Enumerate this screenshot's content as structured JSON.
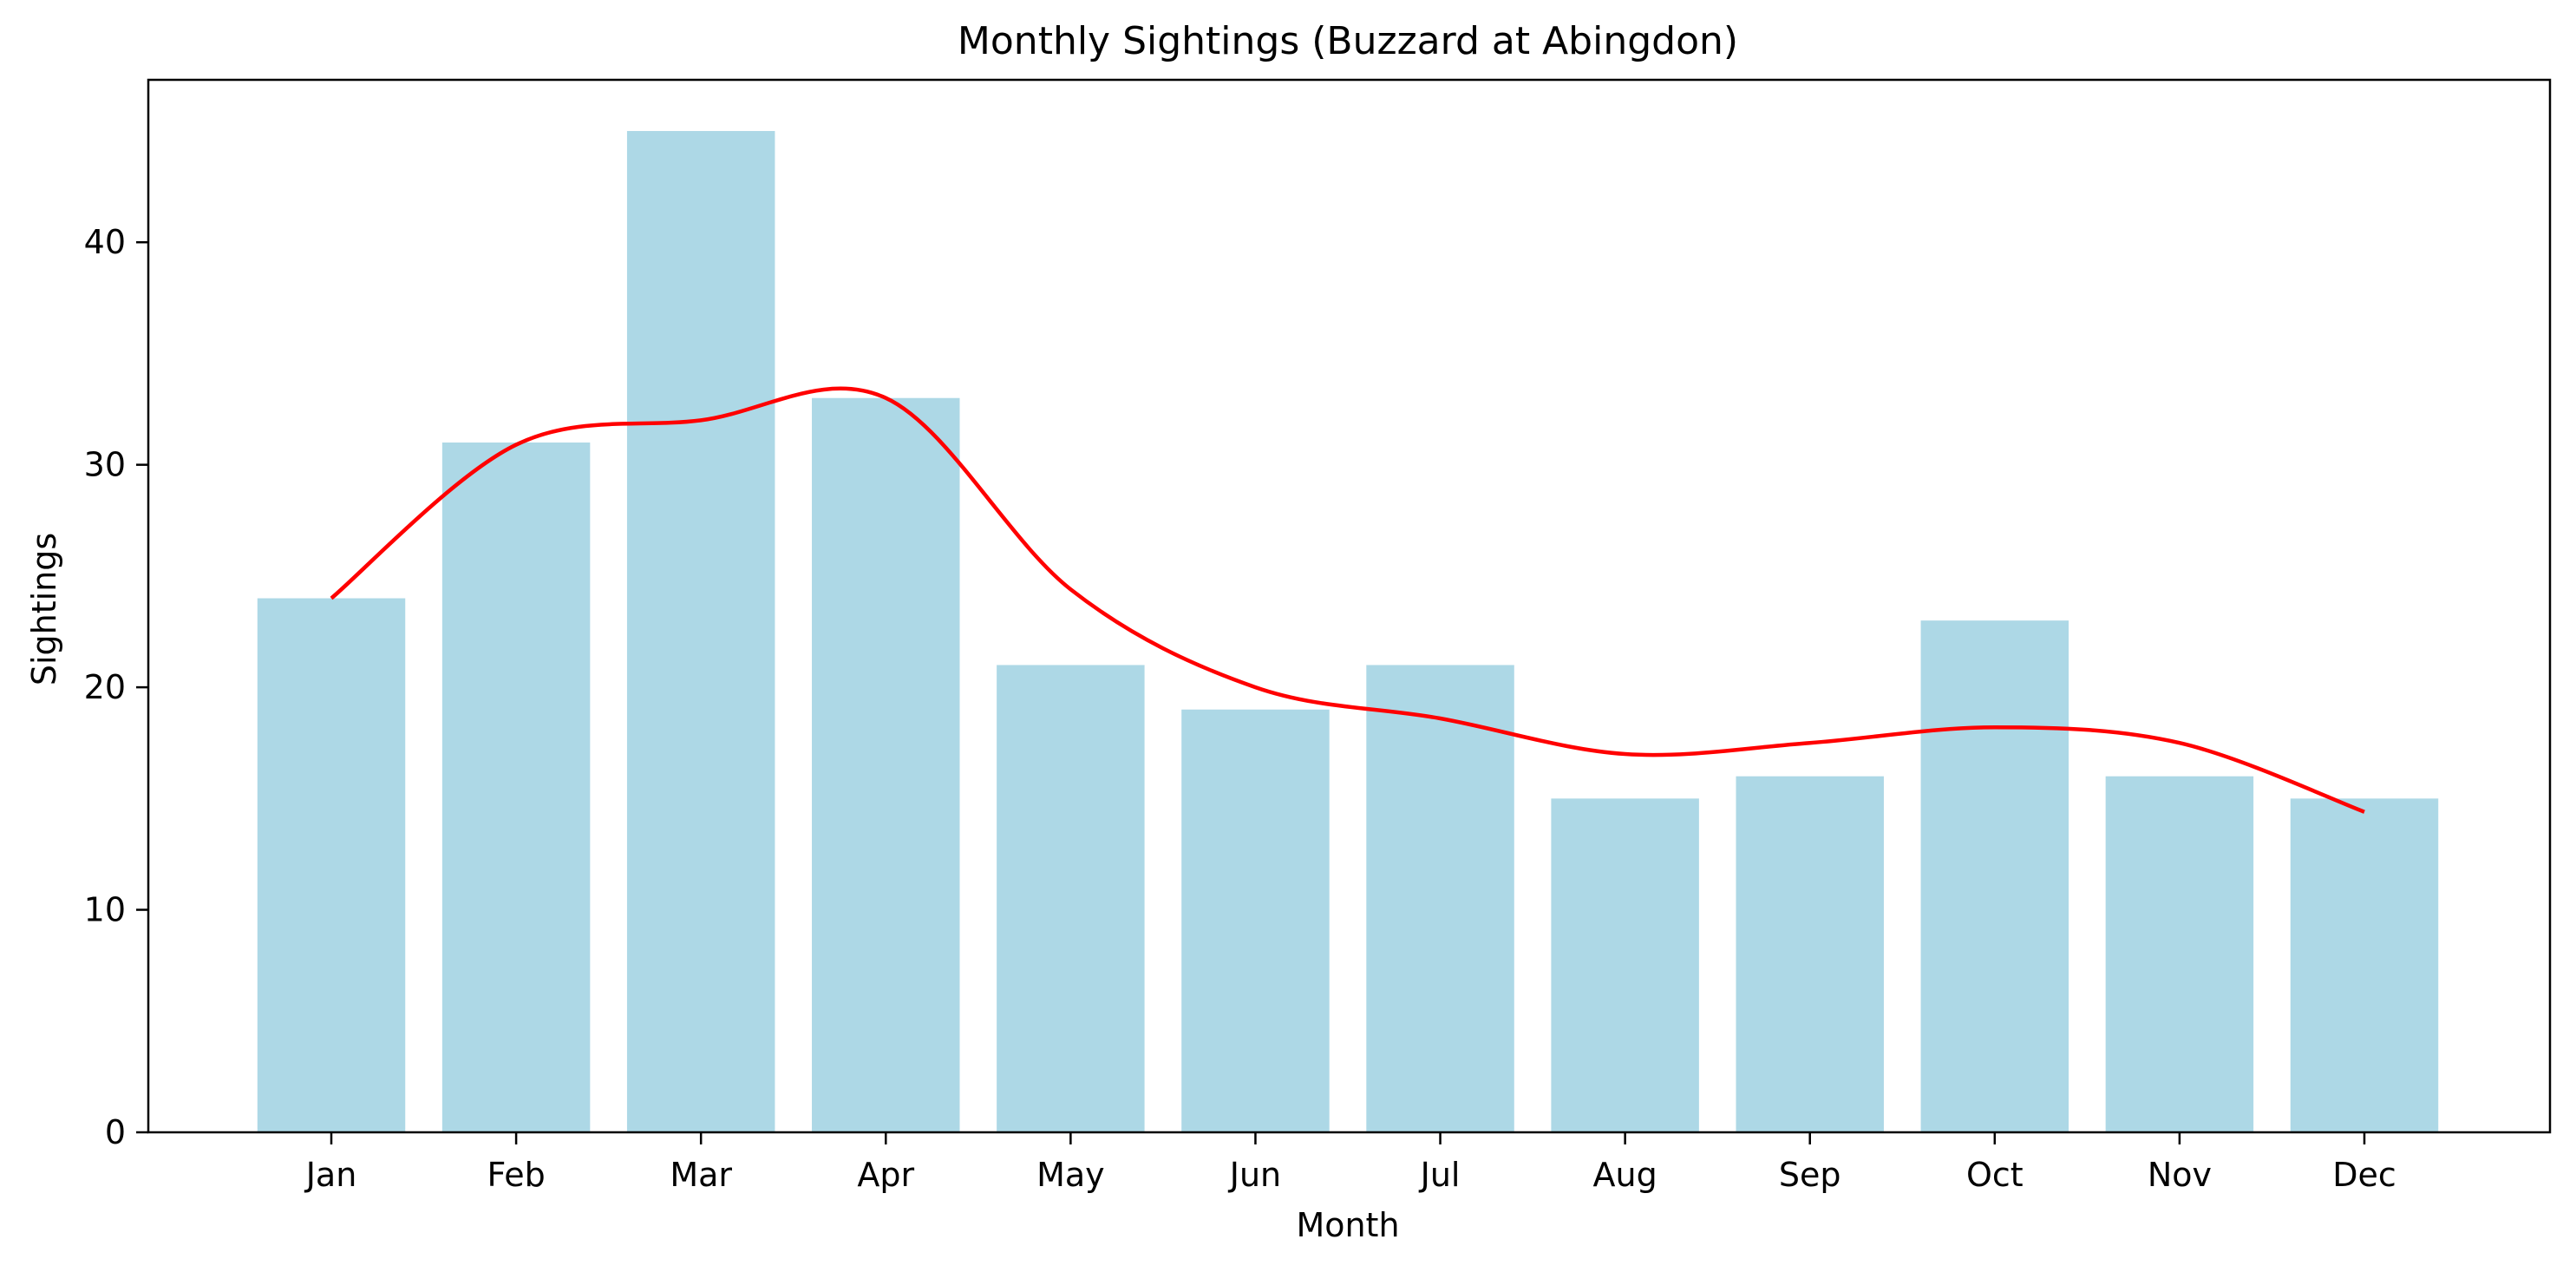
{
  "chart_data": {
    "type": "bar",
    "title": "Monthly Sightings (Buzzard at Abingdon)",
    "xlabel": "Month",
    "ylabel": "Sightings",
    "categories": [
      "Jan",
      "Feb",
      "Mar",
      "Apr",
      "May",
      "Jun",
      "Jul",
      "Aug",
      "Sep",
      "Oct",
      "Nov",
      "Dec"
    ],
    "values": [
      24,
      31,
      45,
      33,
      21,
      19,
      21,
      15,
      16,
      23,
      16,
      15
    ],
    "trend": [
      24,
      30.9,
      32,
      33,
      24.4,
      20,
      18.6,
      17,
      17.5,
      18.2,
      17.5,
      14.4
    ],
    "ylim": [
      0,
      47.3
    ],
    "yticks": [
      0,
      10,
      20,
      30,
      40
    ],
    "grid": false,
    "legend": "none",
    "colors": {
      "bar": "#add8e6",
      "trend": "#ff0000",
      "axis": "#000000"
    }
  }
}
